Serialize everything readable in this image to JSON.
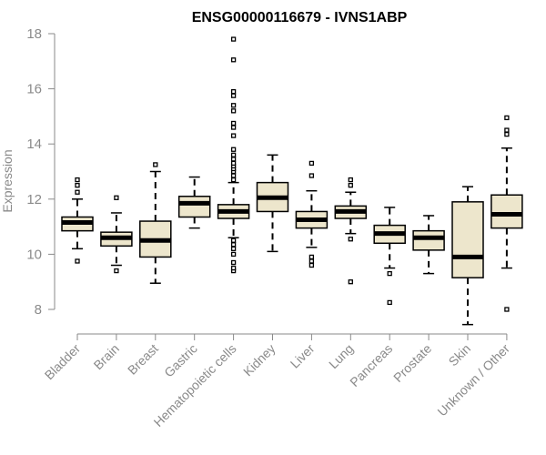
{
  "chart_data": {
    "type": "box",
    "title": "ENSG00000116679 - IVNS1ABP",
    "xlabel": "",
    "ylabel": "Expression",
    "ylim": [
      7.2,
      18.2
    ],
    "yticks": [
      8,
      10,
      12,
      14,
      16,
      18
    ],
    "grid": false,
    "colors": {
      "box_fill": "#ede6cc",
      "stroke": "#000000",
      "axis": "#8a8a8a",
      "text": "#8a8a8a"
    },
    "categories": [
      "Bladder",
      "Brain",
      "Breast",
      "Gastric",
      "Hematopoietic cells",
      "Kidney",
      "Liver",
      "Lung",
      "Pancreas",
      "Prostate",
      "Skin",
      "Unknown / Other"
    ],
    "boxes": [
      {
        "category": "Bladder",
        "whisker_low": 10.2,
        "q1": 10.85,
        "median": 11.15,
        "q3": 11.35,
        "whisker_high": 12.0,
        "outliers": [
          9.75,
          12.25,
          12.5,
          12.7
        ]
      },
      {
        "category": "Brain",
        "whisker_low": 9.6,
        "q1": 10.3,
        "median": 10.6,
        "q3": 10.8,
        "whisker_high": 11.5,
        "outliers": [
          9.4,
          12.05
        ]
      },
      {
        "category": "Breast",
        "whisker_low": 8.95,
        "q1": 9.9,
        "median": 10.5,
        "q3": 11.2,
        "whisker_high": 13.0,
        "outliers": [
          13.25
        ]
      },
      {
        "category": "Gastric",
        "whisker_low": 10.95,
        "q1": 11.35,
        "median": 11.85,
        "q3": 12.1,
        "whisker_high": 12.8,
        "outliers": []
      },
      {
        "category": "Hematopoietic cells",
        "whisker_low": 10.6,
        "q1": 11.3,
        "median": 11.55,
        "q3": 11.8,
        "whisker_high": 12.6,
        "outliers": [
          9.4,
          9.5,
          9.7,
          10.0,
          10.2,
          10.35,
          10.5,
          12.7,
          12.85,
          13.0,
          13.1,
          13.2,
          13.3,
          13.45,
          13.6,
          13.8,
          14.3,
          14.6,
          14.75,
          15.2,
          15.4,
          15.75,
          15.9,
          17.05,
          17.8
        ]
      },
      {
        "category": "Kidney",
        "whisker_low": 10.1,
        "q1": 11.55,
        "median": 12.05,
        "q3": 12.6,
        "whisker_high": 13.6,
        "outliers": []
      },
      {
        "category": "Liver",
        "whisker_low": 10.25,
        "q1": 10.95,
        "median": 11.25,
        "q3": 11.55,
        "whisker_high": 12.3,
        "outliers": [
          9.6,
          9.75,
          9.9,
          12.85,
          13.3
        ]
      },
      {
        "category": "Lung",
        "whisker_low": 10.75,
        "q1": 11.3,
        "median": 11.55,
        "q3": 11.75,
        "whisker_high": 12.25,
        "outliers": [
          9.0,
          10.55,
          12.5,
          12.7
        ]
      },
      {
        "category": "Pancreas",
        "whisker_low": 9.5,
        "q1": 10.4,
        "median": 10.75,
        "q3": 11.05,
        "whisker_high": 11.7,
        "outliers": [
          8.25,
          9.3
        ]
      },
      {
        "category": "Prostate",
        "whisker_low": 9.3,
        "q1": 10.15,
        "median": 10.6,
        "q3": 10.85,
        "whisker_high": 11.4,
        "outliers": []
      },
      {
        "category": "Skin",
        "whisker_low": 7.45,
        "q1": 9.15,
        "median": 9.9,
        "q3": 11.9,
        "whisker_high": 12.45,
        "outliers": []
      },
      {
        "category": "Unknown / Other",
        "whisker_low": 9.5,
        "q1": 10.95,
        "median": 11.45,
        "q3": 12.15,
        "whisker_high": 13.85,
        "outliers": [
          8.0,
          14.35,
          14.5,
          14.95
        ]
      }
    ]
  }
}
